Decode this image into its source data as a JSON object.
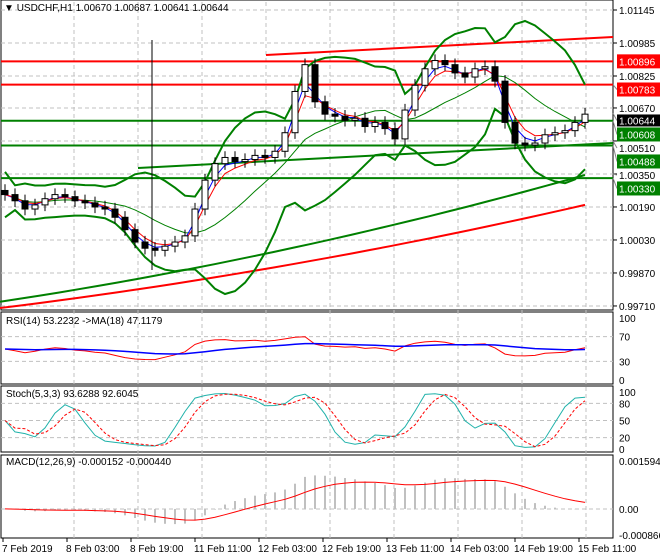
{
  "header": {
    "symbol": "USDCHF,H1",
    "ohlc": "1.00670 1.00687 1.00641 1.00644",
    "menu_icon": "triangle-down-icon"
  },
  "colors": {
    "resistance": "#ff0000",
    "support": "#008000",
    "bollinger": "#008000",
    "ma_long_green": "#008000",
    "ma_long_red": "#ff0000",
    "rsi": "#ff0000",
    "rsi_ma": "#0000ff",
    "stoch_main": "#20b2aa",
    "stoch_signal": "#ff0000",
    "macd_hist": "#c0c0c0",
    "macd_signal": "#ff0000",
    "grid": "#c0c0c0"
  },
  "chart_data": [
    {
      "type": "candlestick",
      "title": "USDCHF,H1",
      "ylim": [
        0.9969,
        1.0117
      ],
      "y_ticks": [
        "1.01145",
        "1.00985",
        "1.00825",
        "1.00670",
        "1.00510",
        "1.00350",
        "1.00190",
        "1.00030",
        "0.99870",
        "0.99710"
      ],
      "x_ticks": [
        "7 Feb 2019",
        "8 Feb 03:00",
        "8 Feb 19:00",
        "11 Feb 11:00",
        "12 Feb 03:00",
        "12 Feb 19:00",
        "13 Feb 11:00",
        "14 Feb 03:00",
        "14 Feb 19:00",
        "15 Feb 11:00"
      ],
      "grid": true,
      "closes": [
        1.0025,
        1.0022,
        1.0018,
        1.002,
        1.0023,
        1.0025,
        1.0024,
        1.0022,
        1.0021,
        1.0019,
        1.0018,
        1.0014,
        1.0008,
        1.0002,
        0.9999,
        0.9998,
        1.0,
        1.0002,
        1.0005,
        1.0018,
        1.0032,
        1.004,
        1.0043,
        1.0041,
        1.0042,
        1.0044,
        1.0043,
        1.0046,
        1.0055,
        1.0075,
        1.0088,
        1.007,
        1.0064,
        1.0063,
        1.0061,
        1.0062,
        1.0058,
        1.006,
        1.0057,
        1.0052,
        1.0066,
        1.0078,
        1.0086,
        1.009,
        1.0088,
        1.0084,
        1.0082,
        1.0086,
        1.0087,
        1.008,
        1.006,
        1.005,
        1.0049,
        1.005,
        1.0054,
        1.0055,
        1.0056,
        1.006,
        1.0064
      ],
      "horizontal_levels": [
        {
          "price": "1.00896",
          "color": "#ff0000"
        },
        {
          "price": "1.00783",
          "color": "#ff0000"
        },
        {
          "price": "1.00608",
          "color": "#008000"
        },
        {
          "price": "1.00488",
          "color": "#008000"
        },
        {
          "price": "1.00330",
          "color": "#008000"
        }
      ],
      "current_price": "1.00644",
      "trendlines": [
        {
          "color": "#ff0000",
          "from": [
            "12 Feb 03:00",
            1.00927
          ],
          "to": [
            "15 Feb 11:00",
            1.01014
          ]
        },
        {
          "color": "#008000",
          "from": [
            "8 Feb 19:00",
            1.00379
          ],
          "to": [
            "15 Feb 11:00",
            1.005
          ]
        }
      ],
      "long_ma": [
        {
          "color": "#008000",
          "from": 0.9973,
          "to": 1.00345
        },
        {
          "color": "#ff0000",
          "from": 0.997,
          "to": 1.002
        }
      ]
    },
    {
      "type": "line",
      "title": "RSI(14) 53.2232  ->MA(18) 47.1179",
      "ylim": [
        0,
        100
      ],
      "y_ticks": [
        "100",
        "70",
        "30",
        "0"
      ]
    },
    {
      "type": "line",
      "title": "Stoch(5,3,3) 93.6288 92.6045",
      "ylim": [
        0,
        100
      ],
      "y_ticks": [
        "100",
        "80",
        "50",
        "20",
        "0"
      ]
    },
    {
      "type": "bar",
      "title": "MACD(12,26,9) -0.000152 -0.000440",
      "ylim": [
        -0.000866,
        0.001594
      ],
      "y_ticks": [
        "0.001594",
        "0.00",
        "-0.000866"
      ]
    }
  ]
}
